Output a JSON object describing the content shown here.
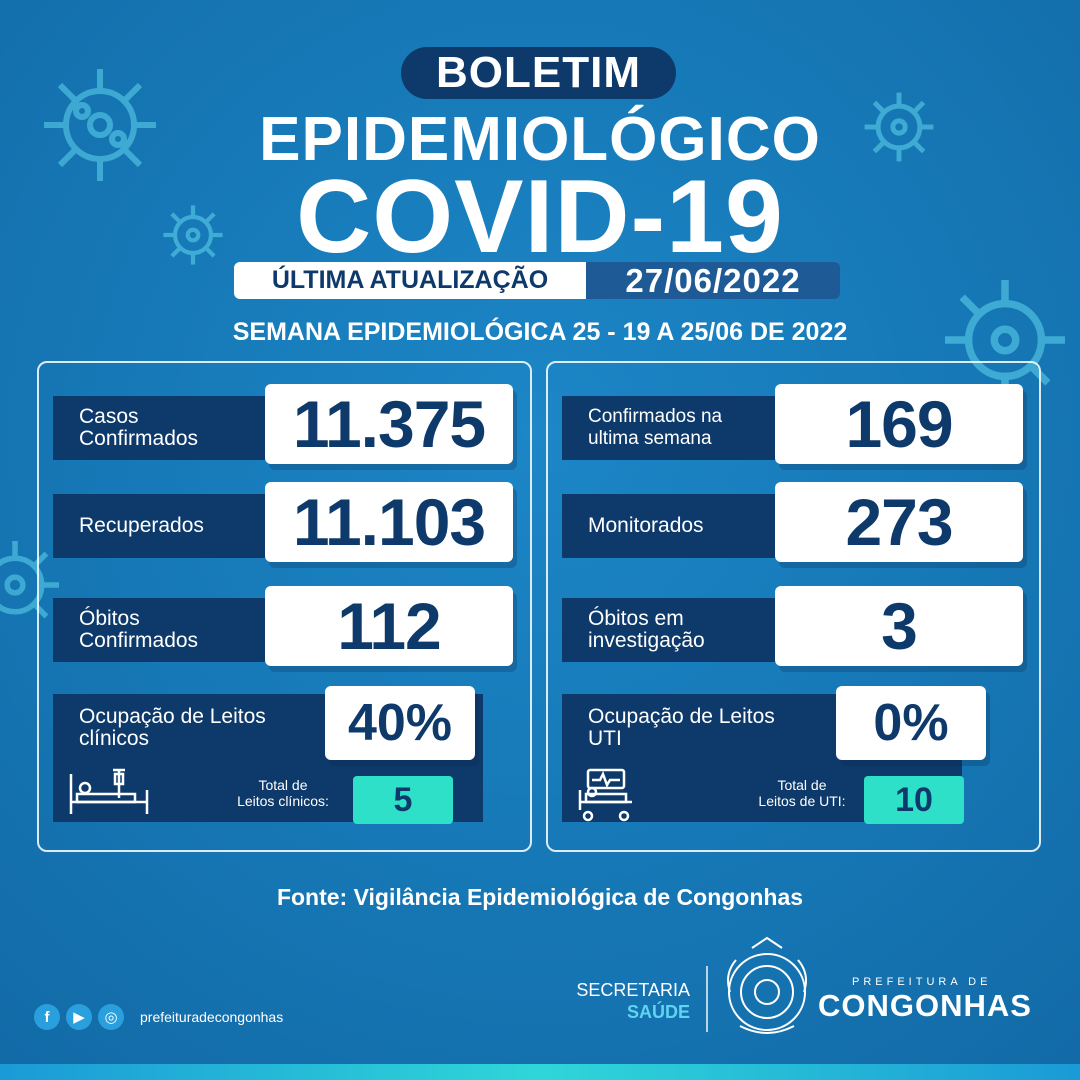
{
  "header": {
    "title_pill": "BOLETIM",
    "title_line2": "EPIDEMIOLÓGICO",
    "title_line3": "COVID-19",
    "update_label": "ÚLTIMA ATUALIZAÇÃO",
    "update_date": "27/06/2022",
    "week": "SEMANA EPIDEMIOLÓGICA 25 - 19 A 25/06 DE 2022"
  },
  "left_panel": {
    "rows": [
      {
        "label_1": "Casos",
        "label_2": "Confirmados",
        "value": "11.375"
      },
      {
        "label_1": "Recuperados",
        "label_2": "",
        "value": "11.103"
      },
      {
        "label_1": "Óbitos",
        "label_2": "Confirmados",
        "value": "112"
      }
    ],
    "occupancy": {
      "label_1": "Ocupação de Leitos",
      "label_2": "clínicos",
      "percent": "40%",
      "total_label_1": "Total de",
      "total_label_2": "Leitos clínicos:",
      "total": "5",
      "icon": "hospital-bed-icon"
    }
  },
  "right_panel": {
    "rows": [
      {
        "label_1": "Confirmados na",
        "label_2": "ultima semana",
        "value": "169"
      },
      {
        "label_1": "Monitorados",
        "label_2": "",
        "value": "273"
      },
      {
        "label_1": "Óbitos em",
        "label_2": "investigação",
        "value": "3"
      }
    ],
    "occupancy": {
      "label_1": "Ocupação de Leitos",
      "label_2": "UTI",
      "percent": "0%",
      "total_label_1": "Total de",
      "total_label_2": "Leitos de UTI:",
      "total": "10",
      "icon": "icu-bed-icon"
    }
  },
  "footer": {
    "source": "Fonte: Vigilância Epidemiológica de Congonhas",
    "social_handle": "prefeituradecongonhas",
    "secretaria_1": "SECRETARIA",
    "secretaria_2": "SAÚDE",
    "prefeitura_1": "PREFEITURA DE",
    "prefeitura_2": "CONGONHAS"
  },
  "colors": {
    "background": "#1677b5",
    "navy": "#0e3a6b",
    "accent_teal": "#2fe0c8",
    "date_bg": "#1e5a96"
  }
}
